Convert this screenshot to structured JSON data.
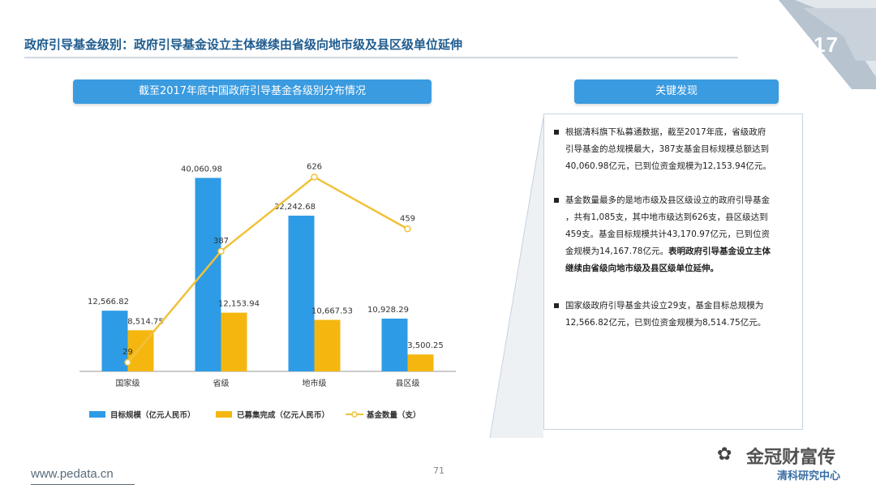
{
  "slide": {
    "title": "政府引导基金级别：政府引导基金设立主体继续由省级向地市级及县区级单位延伸",
    "year": "2017",
    "findings_header": "关键发现",
    "footer_url": "www.pedata.cn",
    "page_number": "71",
    "watermark_text": "金冠财富传",
    "watermark_sub": "清科研究中心",
    "colors": {
      "accent": "#3a9be0",
      "bar_target": "#2e9be6",
      "bar_completed": "#f5b70f",
      "line_count": "#f0c23a",
      "title": "#1f5c8f"
    }
  },
  "findings": [
    {
      "lines": [
        "根据清科旗下私募通数据，截至2017年底，省级政府",
        "引导基金的总规模最大，387支基金目标规模总额达到",
        "40,060.98亿元，已到位资金规模为12,153.94亿元。"
      ]
    },
    {
      "lines": [
        "基金数量最多的是地市级及县区级设立的政府引导基金",
        "，共有1,085支，其中地市级达到626支，县区级达到",
        "459支。基金目标规模共计43,170.97亿元，已到位资",
        "金规模为14,167.78亿元。"
      ],
      "bold_lines": [
        "表明政府引导基金设立主体",
        "继续由省级向地市级及县区级单位延伸。"
      ]
    },
    {
      "lines": [
        "国家级政府引导基金共设立29支，基金目标总规模为",
        "12,566.82亿元，已到位资金规模为8,514.75亿元。"
      ]
    }
  ],
  "chart_data": {
    "type": "bar",
    "title": "截至2017年底中国政府引导基金各级别分布情况",
    "categories": [
      "国家级",
      "省级",
      "地市级",
      "县区级"
    ],
    "series": [
      {
        "name": "目标规模（亿元人民币）",
        "type": "bar",
        "values": [
          12566.82,
          40060.98,
          32242.68,
          10928.29
        ],
        "labels": [
          "12,566.82",
          "40,060.98",
          "32,242.68",
          "10,928.29"
        ]
      },
      {
        "name": "已募集完成（亿元人民币）",
        "type": "bar",
        "values": [
          8514.75,
          12153.94,
          10667.53,
          3500.25
        ],
        "labels": [
          "8,514.75",
          "12,153.94",
          "10,667.53",
          "3,500.25"
        ]
      },
      {
        "name": "基金数量（支）",
        "type": "line",
        "axis": "secondary",
        "values": [
          29,
          387,
          626,
          459
        ],
        "labels": [
          "29",
          "387",
          "626",
          "459"
        ]
      }
    ],
    "ylim": [
      0,
      45000
    ],
    "y2lim": [
      0,
      700
    ],
    "legend_position": "bottom",
    "grid": false
  }
}
